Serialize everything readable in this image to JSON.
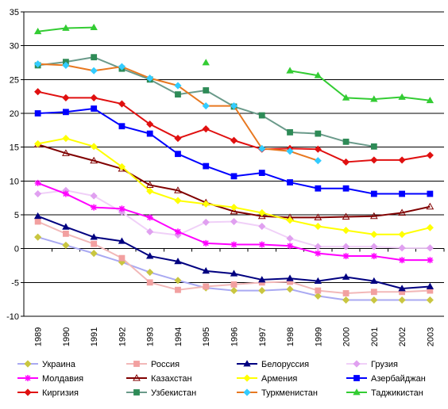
{
  "chart_data": {
    "type": "line",
    "x": [
      "1989",
      "1990",
      "1991",
      "1992",
      "1993",
      "1994",
      "1995",
      "1996",
      "1997",
      "1998",
      "1999",
      "2000",
      "2001",
      "2002",
      "2003"
    ],
    "ylim": [
      -10,
      35
    ],
    "yticks": [
      -10,
      -5,
      0,
      5,
      10,
      15,
      20,
      25,
      30,
      35
    ],
    "grid": true,
    "legend_position": "bottom",
    "series": [
      {
        "name": "Украина",
        "color": "#C9C640",
        "line_color": "#A9A9F2",
        "marker": "diamond",
        "values": [
          1.7,
          0.5,
          -0.7,
          -2.0,
          -3.5,
          -4.7,
          -5.8,
          -6.2,
          -6.2,
          -6.0,
          -7.0,
          -7.6,
          -7.6,
          -7.6,
          -7.6
        ]
      },
      {
        "name": "Россия",
        "color": "#F2A0A0",
        "line_color": "#F2B8B8",
        "marker": "square",
        "values": [
          4.0,
          2.2,
          0.7,
          -1.4,
          -5.0,
          -6.1,
          -5.6,
          -5.3,
          -5.0,
          -4.9,
          -6.2,
          -6.6,
          -6.4,
          -6.4,
          -6.2
        ]
      },
      {
        "name": "Белоруссия",
        "color": "#000080",
        "line_color": "#000080",
        "marker": "triangle",
        "values": [
          4.8,
          3.2,
          1.7,
          1.1,
          -1.1,
          -1.9,
          -3.3,
          -3.7,
          -4.6,
          -4.4,
          -4.8,
          -4.2,
          -4.8,
          -5.9,
          -5.6
        ]
      },
      {
        "name": "Грузия",
        "color": "#E0A0F0",
        "line_color": "#F0D0F8",
        "marker": "diamond",
        "values": [
          8.1,
          8.6,
          7.8,
          5.4,
          2.5,
          2.0,
          3.9,
          4.0,
          3.3,
          1.5,
          0.3,
          0.3,
          0.3,
          0.1,
          0.1
        ]
      },
      {
        "name": "Молдавия",
        "color": "#FF00FF",
        "line_color": "#FF00FF",
        "marker": "asterisk",
        "values": [
          9.7,
          8.1,
          6.1,
          5.9,
          4.6,
          2.5,
          0.8,
          0.6,
          0.6,
          0.4,
          -0.7,
          -1.1,
          -1.1,
          -1.7,
          -1.7
        ]
      },
      {
        "name": "Казахстан",
        "color": "#800000",
        "line_color": "#800000",
        "marker": "triangle-open",
        "values": [
          15.4,
          14.1,
          13.0,
          11.8,
          9.4,
          8.6,
          6.8,
          5.5,
          4.8,
          4.6,
          4.6,
          4.7,
          4.8,
          5.3,
          6.2
        ]
      },
      {
        "name": "Армения",
        "color": "#FFFF00",
        "line_color": "#FFFF00",
        "marker": "diamond",
        "values": [
          15.5,
          16.3,
          15.1,
          12.1,
          8.5,
          7.1,
          6.6,
          6.1,
          5.3,
          4.2,
          3.3,
          2.7,
          2.1,
          2.1,
          3.1
        ]
      },
      {
        "name": "Азербайджан",
        "color": "#0000FF",
        "line_color": "#0000FF",
        "marker": "square",
        "values": [
          20.0,
          20.2,
          20.7,
          18.1,
          17.0,
          14.0,
          12.2,
          10.7,
          11.2,
          9.8,
          8.9,
          8.9,
          8.1,
          8.1,
          8.1
        ]
      },
      {
        "name": "Киргизия",
        "color": "#E01010",
        "line_color": "#E01010",
        "marker": "diamond",
        "values": [
          23.2,
          22.3,
          22.3,
          21.4,
          18.4,
          16.3,
          17.7,
          16.0,
          14.7,
          14.8,
          14.7,
          12.8,
          13.1,
          13.1,
          13.8
        ]
      },
      {
        "name": "Узбекистан",
        "color": "#2E8B57",
        "line_color": "#6A9A8A",
        "marker": "square",
        "values": [
          27.1,
          27.6,
          28.3,
          26.6,
          25.0,
          22.8,
          23.4,
          21.0,
          19.7,
          17.2,
          17.0,
          15.8,
          15.1,
          null,
          null
        ]
      },
      {
        "name": "Туркменистан",
        "color": "#33CCFF",
        "line_color": "#E87820",
        "marker": "diamond",
        "values": [
          27.3,
          27.1,
          26.3,
          26.9,
          25.2,
          24.1,
          21.1,
          21.1,
          14.8,
          14.4,
          13.0,
          null,
          null,
          null,
          null
        ]
      },
      {
        "name": "Таджикистан",
        "color": "#33CC33",
        "line_color": "#33CC33",
        "marker": "triangle",
        "values": [
          32.1,
          32.6,
          32.7,
          null,
          null,
          null,
          27.5,
          null,
          null,
          26.3,
          25.6,
          22.3,
          22.1,
          22.4,
          21.9
        ]
      }
    ]
  }
}
